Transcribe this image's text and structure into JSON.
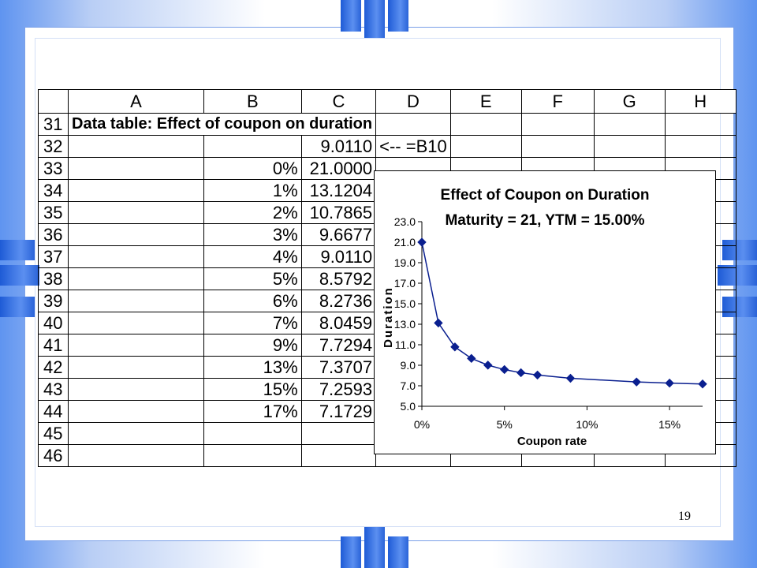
{
  "columns": [
    "A",
    "B",
    "C",
    "D",
    "E",
    "F",
    "G",
    "H"
  ],
  "rows": [
    {
      "row": "31",
      "cells": [
        "Data table:  Effect of coupon on duration",
        "",
        "",
        "",
        "",
        "",
        "",
        ""
      ]
    },
    {
      "row": "32",
      "cells": [
        "",
        "",
        "9.0110",
        "<-- =B10",
        "",
        "",
        "",
        ""
      ]
    },
    {
      "row": "33",
      "cells": [
        "",
        "0%",
        "21.0000",
        "",
        "",
        "",
        "",
        ""
      ]
    },
    {
      "row": "34",
      "cells": [
        "",
        "1%",
        "13.1204",
        "",
        "",
        "",
        "",
        ""
      ]
    },
    {
      "row": "35",
      "cells": [
        "",
        "2%",
        "10.7865",
        "",
        "",
        "",
        "",
        ""
      ]
    },
    {
      "row": "36",
      "cells": [
        "",
        "3%",
        "9.6677",
        "",
        "",
        "",
        "",
        ""
      ]
    },
    {
      "row": "37",
      "cells": [
        "",
        "4%",
        "9.0110",
        "",
        "",
        "",
        "",
        ""
      ]
    },
    {
      "row": "38",
      "cells": [
        "",
        "5%",
        "8.5792",
        "",
        "",
        "",
        "",
        ""
      ]
    },
    {
      "row": "39",
      "cells": [
        "",
        "6%",
        "8.2736",
        "",
        "",
        "",
        "",
        ""
      ]
    },
    {
      "row": "40",
      "cells": [
        "",
        "7%",
        "8.0459",
        "",
        "",
        "",
        "",
        ""
      ]
    },
    {
      "row": "41",
      "cells": [
        "",
        "9%",
        "7.7294",
        "",
        "",
        "",
        "",
        ""
      ]
    },
    {
      "row": "42",
      "cells": [
        "",
        "13%",
        "7.3707",
        "",
        "",
        "",
        "",
        ""
      ]
    },
    {
      "row": "43",
      "cells": [
        "",
        "15%",
        "7.2593",
        "",
        "",
        "",
        "",
        ""
      ]
    },
    {
      "row": "44",
      "cells": [
        "",
        "17%",
        "7.1729",
        "",
        "",
        "",
        "",
        ""
      ]
    },
    {
      "row": "45",
      "cells": [
        "",
        "",
        "",
        "",
        "",
        "",
        "",
        ""
      ]
    },
    {
      "row": "46",
      "cells": [
        "",
        "",
        "",
        "",
        "",
        "",
        "",
        ""
      ]
    }
  ],
  "chart_data": {
    "type": "line",
    "title": "Effect of Coupon on Duration",
    "subtitle": "Maturity = 21, YTM = 15.00%",
    "xlabel": "Coupon rate",
    "ylabel": "Duration",
    "x": [
      0,
      1,
      2,
      3,
      4,
      5,
      6,
      7,
      9,
      13,
      15,
      17
    ],
    "values": [
      21.0,
      13.1204,
      10.7865,
      9.6677,
      9.011,
      8.5792,
      8.2736,
      8.0459,
      7.7294,
      7.3707,
      7.2593,
      7.1729
    ],
    "xlim": [
      0,
      17
    ],
    "ylim": [
      5.0,
      23.0
    ],
    "xticks": [
      "0%",
      "5%",
      "10%",
      "15%"
    ],
    "xtick_values": [
      0,
      5,
      10,
      15
    ],
    "yticks": [
      "5.0",
      "7.0",
      "9.0",
      "11.0",
      "13.0",
      "15.0",
      "17.0",
      "19.0",
      "21.0",
      "23.0"
    ],
    "ytick_values": [
      5,
      7,
      9,
      11,
      13,
      15,
      17,
      19,
      21,
      23
    ],
    "series_color": "#0a1f8f",
    "grid": false,
    "legend": "none"
  },
  "page_number": "19"
}
